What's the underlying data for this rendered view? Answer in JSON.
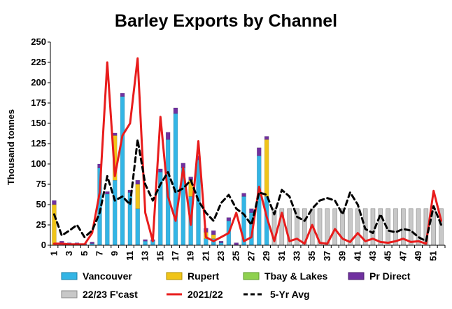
{
  "chart_data": {
    "type": "bar",
    "title": "Barley Exports by Channel",
    "xlabel": "",
    "ylabel": "Thousand tonnes",
    "ylim": [
      0,
      250
    ],
    "yticks": [
      0,
      25,
      50,
      75,
      100,
      125,
      150,
      175,
      200,
      225,
      250
    ],
    "x": [
      1,
      2,
      3,
      4,
      5,
      6,
      7,
      8,
      9,
      10,
      11,
      12,
      13,
      14,
      15,
      16,
      17,
      18,
      19,
      20,
      21,
      22,
      23,
      24,
      25,
      26,
      27,
      28,
      29,
      30,
      31,
      32,
      33,
      34,
      35,
      36,
      37,
      38,
      39,
      40,
      41,
      42,
      43,
      44,
      45,
      46,
      47,
      48,
      49,
      50,
      51,
      52
    ],
    "xtick_labels": [
      "1",
      "3",
      "5",
      "7",
      "9",
      "11",
      "13",
      "15",
      "17",
      "19",
      "21",
      "23",
      "25",
      "27",
      "29",
      "31",
      "33",
      "35",
      "37",
      "39",
      "41",
      "43",
      "45",
      "47",
      "49",
      "51"
    ],
    "grid": false,
    "legend": "bottom",
    "stacked_series": [
      {
        "name": "Vancouver",
        "color": "#33b5e5",
        "values": [
          0,
          2,
          1,
          1,
          1,
          2,
          95,
          63,
          80,
          183,
          65,
          45,
          5,
          5,
          90,
          130,
          162,
          95,
          60,
          105,
          8,
          8,
          3,
          30,
          0,
          60,
          40,
          110,
          60,
          0,
          0,
          0,
          0,
          0,
          0,
          0,
          0,
          0,
          0,
          0,
          0,
          0,
          0,
          0,
          0,
          0,
          0,
          0,
          0,
          0,
          0,
          0
        ]
      },
      {
        "name": "Rupert",
        "color": "#f0c419",
        "values": [
          50,
          0,
          0,
          0,
          0,
          0,
          0,
          0,
          55,
          0,
          0,
          30,
          0,
          0,
          0,
          0,
          0,
          0,
          20,
          0,
          8,
          5,
          0,
          0,
          0,
          0,
          0,
          0,
          70,
          0,
          0,
          0,
          0,
          0,
          0,
          0,
          0,
          0,
          0,
          0,
          0,
          0,
          0,
          0,
          0,
          0,
          0,
          0,
          0,
          0,
          0,
          0
        ]
      },
      {
        "name": "Tbay & Lakes",
        "color": "#8fd14f",
        "values": [
          0,
          0,
          0,
          0,
          0,
          0,
          0,
          0,
          0,
          0,
          0,
          0,
          0,
          0,
          0,
          0,
          0,
          0,
          0,
          0,
          0,
          0,
          0,
          0,
          0,
          0,
          0,
          0,
          0,
          0,
          0,
          0,
          0,
          0,
          0,
          0,
          0,
          0,
          0,
          0,
          0,
          0,
          0,
          0,
          0,
          0,
          0,
          0,
          0,
          0,
          0,
          0
        ]
      },
      {
        "name": "Pr Direct",
        "color": "#7030a0",
        "values": [
          5,
          3,
          2,
          2,
          1,
          2,
          5,
          3,
          3,
          4,
          3,
          5,
          2,
          2,
          4,
          9,
          7,
          6,
          4,
          5,
          5,
          5,
          2,
          4,
          3,
          4,
          5,
          10,
          4,
          0,
          0,
          0,
          0,
          0,
          0,
          0,
          0,
          0,
          0,
          0,
          0,
          0,
          0,
          0,
          0,
          0,
          0,
          0,
          0,
          0,
          0,
          0
        ]
      }
    ],
    "forecast": {
      "name": "22/23 F'cast",
      "color": "#c8c8c8",
      "values": [
        0,
        0,
        0,
        0,
        0,
        0,
        0,
        0,
        0,
        0,
        0,
        0,
        0,
        0,
        0,
        0,
        0,
        0,
        0,
        0,
        0,
        0,
        0,
        0,
        0,
        0,
        0,
        0,
        0,
        45,
        45,
        45,
        45,
        45,
        45,
        45,
        45,
        45,
        45,
        45,
        45,
        45,
        45,
        45,
        45,
        45,
        45,
        45,
        45,
        45,
        45,
        45
      ]
    },
    "lines": [
      {
        "name": "2021/22",
        "color": "#e81c1c",
        "style": "solid",
        "values": [
          2,
          2,
          1,
          1,
          1,
          15,
          65,
          225,
          85,
          135,
          150,
          230,
          40,
          5,
          158,
          60,
          30,
          95,
          25,
          128,
          10,
          5,
          10,
          15,
          40,
          5,
          10,
          72,
          35,
          5,
          40,
          5,
          8,
          2,
          25,
          3,
          2,
          20,
          8,
          4,
          15,
          5,
          8,
          4,
          3,
          5,
          8,
          4,
          5,
          2,
          67,
          30
        ]
      },
      {
        "name": "5-Yr Avg",
        "color": "#000000",
        "style": "dashed",
        "values": [
          38,
          12,
          18,
          25,
          10,
          18,
          40,
          85,
          55,
          60,
          50,
          130,
          75,
          55,
          75,
          90,
          65,
          70,
          80,
          55,
          40,
          30,
          52,
          62,
          45,
          38,
          25,
          65,
          62,
          38,
          68,
          60,
          35,
          30,
          45,
          55,
          58,
          55,
          38,
          65,
          50,
          20,
          15,
          38,
          18,
          16,
          20,
          18,
          10,
          5,
          48,
          25
        ]
      }
    ]
  }
}
